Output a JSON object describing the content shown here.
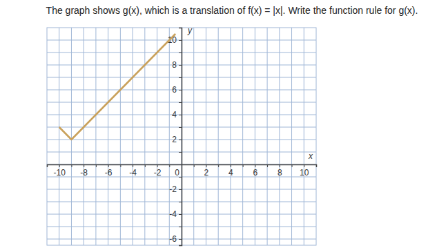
{
  "chart_data": {
    "type": "line",
    "title": "The graph shows g(x), which is a translation of f(x) = |x|. Write the function rule for g(x).",
    "x_label": "x",
    "y_label": "y",
    "x": [
      -10,
      -9,
      -0.5
    ],
    "series": [
      {
        "values": [
          3,
          2,
          10.5
        ],
        "color": "#c9a15b"
      }
    ],
    "xlim": [
      -11,
      11
    ],
    "ylim": [
      -6.5,
      11
    ],
    "xticks": [
      -10,
      {
        "value": -9,
        "label": null
      },
      -8,
      {
        "value": -7,
        "label": null
      },
      -6,
      {
        "value": -5,
        "label": null
      },
      -4,
      {
        "value": -3,
        "label": null
      },
      -2,
      {
        "value": -1,
        "label": null
      },
      0,
      {
        "value": 1,
        "label": null
      },
      2,
      {
        "value": 3,
        "label": null
      },
      4,
      {
        "value": 5,
        "label": null
      },
      6,
      {
        "value": 7,
        "label": null
      },
      8,
      {
        "value": 9,
        "label": null
      },
      10
    ],
    "yticks": [
      -6,
      {
        "value": -5,
        "label": null
      },
      -4,
      {
        "value": -3,
        "label": null
      },
      -2,
      {
        "value": -1,
        "label": null
      },
      {
        "value": 0,
        "label": null
      },
      {
        "value": 1,
        "label": null
      },
      2,
      {
        "value": 3,
        "label": null
      },
      4,
      {
        "value": 5,
        "label": null
      },
      6,
      {
        "value": 7,
        "label": null
      },
      8,
      {
        "value": 9,
        "label": null
      },
      10
    ],
    "grid": true
  }
}
